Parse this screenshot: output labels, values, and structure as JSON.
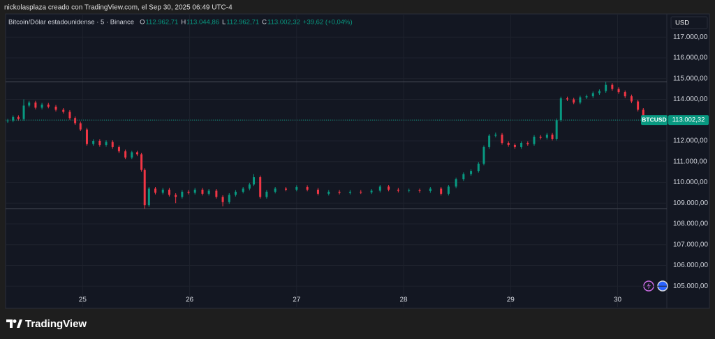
{
  "header": "nickolasplaza creado con TradingView.com, el Sep 30, 2025 06:49 UTC-4",
  "chart_data": {
    "type": "candlestick",
    "title": "Bitcoin/Dólar estadounidense · 5 · Binance",
    "ohlc": [
      {
        "label": "O",
        "text": "112.962,71"
      },
      {
        "label": "H",
        "text": "113.044,86"
      },
      {
        "label": "L",
        "text": "112.962,71"
      },
      {
        "label": "C",
        "text": "113.002,32"
      }
    ],
    "change": "+39,62 (+0,04%)",
    "currency": "USD",
    "symbol": "BTCUSD",
    "price_label": "113.002,32",
    "up_color": "#089981",
    "down_color": "#f23645",
    "grid": true,
    "x": [
      24.3,
      24.35,
      24.4,
      24.45,
      24.5,
      24.56,
      24.62,
      24.68,
      24.75,
      24.82,
      24.88,
      24.93,
      24.98,
      25.04,
      25.1,
      25.16,
      25.22,
      25.28,
      25.34,
      25.4,
      25.46,
      25.51,
      25.55,
      25.58,
      25.62,
      25.68,
      25.75,
      25.81,
      25.87,
      25.93,
      25.99,
      26.05,
      26.12,
      26.18,
      26.25,
      26.31,
      26.37,
      26.43,
      26.5,
      26.56,
      26.6,
      26.66,
      26.72,
      26.8,
      26.9,
      27.0,
      27.1,
      27.2,
      27.3,
      27.4,
      27.5,
      27.6,
      27.7,
      27.78,
      27.86,
      27.95,
      28.05,
      28.15,
      28.25,
      28.35,
      28.42,
      28.49,
      28.56,
      28.63,
      28.7,
      28.75,
      28.8,
      28.86,
      28.92,
      28.98,
      29.04,
      29.1,
      29.16,
      29.22,
      29.28,
      29.34,
      29.39,
      29.43,
      29.47,
      29.53,
      29.59,
      29.65,
      29.71,
      29.77,
      29.83,
      29.89,
      29.95,
      30.01,
      30.07,
      30.13,
      30.19,
      30.24
    ],
    "open": [
      112950,
      112980,
      113150,
      113050,
      113700,
      113850,
      113600,
      113750,
      113650,
      113500,
      113400,
      113100,
      112850,
      112550,
      111850,
      112000,
      111800,
      111950,
      111700,
      111500,
      111200,
      111450,
      111350,
      110600,
      108900,
      109700,
      109500,
      109650,
      109400,
      109300,
      109550,
      109500,
      109650,
      109450,
      109600,
      109300,
      109050,
      109400,
      109550,
      109700,
      109900,
      110250,
      109300,
      109550,
      109700,
      109650,
      109780,
      109650,
      109450,
      109550,
      109500,
      109550,
      109520,
      109600,
      109800,
      109650,
      109600,
      109620,
      109580,
      109700,
      109450,
      109800,
      110150,
      110400,
      110550,
      110900,
      111700,
      112250,
      112300,
      111900,
      111800,
      111700,
      111900,
      111850,
      112200,
      112150,
      112300,
      112100,
      113000,
      114050,
      114000,
      113850,
      114100,
      114150,
      114300,
      114400,
      114700,
      114500,
      114350,
      114150,
      113900,
      113500
    ],
    "high": [
      113060,
      113230,
      113230,
      114000,
      113930,
      113930,
      113830,
      113830,
      113730,
      113580,
      113480,
      113180,
      112930,
      112630,
      112080,
      112080,
      112030,
      112030,
      111780,
      111580,
      111530,
      111530,
      111430,
      110680,
      109780,
      109780,
      109730,
      109730,
      109480,
      109630,
      109630,
      109730,
      109730,
      109680,
      109680,
      109380,
      109480,
      109630,
      109780,
      109980,
      110400,
      110330,
      109630,
      109780,
      109780,
      109860,
      109860,
      109730,
      109630,
      109630,
      109630,
      109630,
      109680,
      109880,
      109880,
      109730,
      109700,
      109700,
      109780,
      109780,
      109880,
      110230,
      110480,
      110630,
      110980,
      111780,
      112330,
      112400,
      112380,
      111980,
      111880,
      111980,
      111980,
      112280,
      112280,
      112380,
      112380,
      113080,
      114130,
      114130,
      114080,
      114180,
      114230,
      114380,
      114480,
      114850,
      114780,
      114580,
      114430,
      114230,
      113980,
      113580
    ],
    "low": [
      112870,
      112900,
      112970,
      112970,
      113620,
      113520,
      113520,
      113570,
      113420,
      113320,
      113020,
      112770,
      112470,
      111770,
      111770,
      111720,
      111720,
      111620,
      111420,
      111120,
      111120,
      111270,
      110520,
      108730,
      108820,
      109420,
      109420,
      109320,
      109000,
      109220,
      109420,
      109420,
      109370,
      109370,
      109220,
      108850,
      108970,
      109320,
      109470,
      109620,
      109820,
      109220,
      109220,
      109470,
      109570,
      109570,
      109570,
      109370,
      109370,
      109420,
      109420,
      109440,
      109440,
      109520,
      109570,
      109520,
      109520,
      109500,
      109500,
      109370,
      109370,
      109720,
      110070,
      110320,
      110470,
      110820,
      111620,
      112170,
      111820,
      111720,
      111620,
      111620,
      111770,
      111770,
      112070,
      112070,
      112020,
      112020,
      112920,
      113920,
      113770,
      113770,
      114020,
      114070,
      114220,
      114320,
      114420,
      114270,
      114070,
      113820,
      113420,
      112960
    ],
    "close": [
      112980,
      113150,
      113050,
      113700,
      113850,
      113600,
      113750,
      113650,
      113500,
      113400,
      113100,
      112850,
      112550,
      111850,
      112000,
      111800,
      111950,
      111700,
      111500,
      111200,
      111450,
      111350,
      110600,
      108900,
      109700,
      109500,
      109650,
      109400,
      109300,
      109550,
      109500,
      109650,
      109450,
      109600,
      109300,
      109050,
      109400,
      109550,
      109700,
      109900,
      110250,
      109300,
      109550,
      109700,
      109650,
      109780,
      109650,
      109450,
      109550,
      109500,
      109550,
      109520,
      109600,
      109800,
      109650,
      109600,
      109620,
      109580,
      109700,
      109450,
      109800,
      110150,
      110400,
      110550,
      110900,
      111700,
      112250,
      112300,
      111900,
      111800,
      111700,
      111900,
      111850,
      112200,
      112150,
      112300,
      112100,
      113000,
      114050,
      114000,
      113850,
      114100,
      114150,
      114300,
      114400,
      114700,
      114500,
      114350,
      114150,
      113900,
      113500,
      113002.32
    ],
    "hlines": [
      114850,
      108730
    ],
    "xlim": [
      24.28,
      30.46
    ],
    "xticks": [
      25,
      26,
      27,
      28,
      29,
      30
    ],
    "ylim": [
      104000,
      118050
    ],
    "yticks": [
      {
        "value": 105000,
        "label": "105.000,00"
      },
      {
        "value": 106000,
        "label": "106.000,00"
      },
      {
        "value": 107000,
        "label": "107.000,00"
      },
      {
        "value": 108000,
        "label": "108.000,00"
      },
      {
        "value": 109000,
        "label": "109.000,00"
      },
      {
        "value": 110000,
        "label": "110.000,00"
      },
      {
        "value": 111000,
        "label": "111.000,00"
      },
      {
        "value": 112000,
        "label": "112.000,00"
      },
      {
        "value": 113000,
        "label": "113.000,00"
      },
      {
        "value": 114000,
        "label": "114.000,00"
      },
      {
        "value": 115000,
        "label": "115.000,00"
      },
      {
        "value": 116000,
        "label": "116.000,00"
      },
      {
        "value": 117000,
        "label": "117.000,00"
      }
    ]
  },
  "brand": "TradingView"
}
